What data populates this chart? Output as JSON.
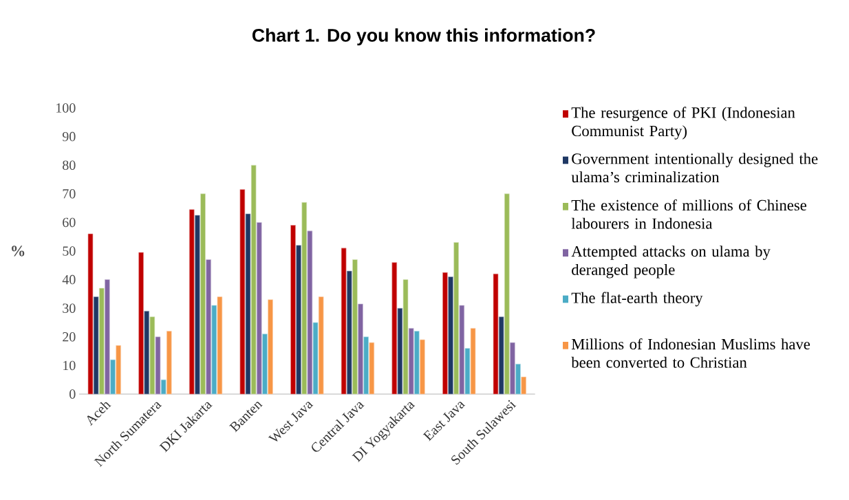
{
  "chart_data": {
    "type": "bar",
    "title": "Chart 1. Do you know this information?",
    "ylabel": "%",
    "categories": [
      "Aceh",
      "North Sumatera",
      "DKI Jakarta",
      "Banten",
      "West Java",
      "Central Java",
      "DI Yogyakarta",
      "East Java",
      "South Sulawesi"
    ],
    "ylim": [
      0,
      100
    ],
    "yticks": [
      0,
      10,
      20,
      30,
      40,
      50,
      60,
      70,
      80,
      90,
      100
    ],
    "grid": false,
    "legend": "right",
    "series": [
      {
        "name": "The resurgence of PKI (Indonesian Communist Party)",
        "color": "#c00000",
        "values": [
          56,
          49.5,
          64.5,
          71.5,
          59,
          51,
          46,
          42.5,
          42
        ]
      },
      {
        "name": "Government intentionally designed the ulama’s criminalization",
        "color": "#1f3864",
        "values": [
          34,
          29,
          62.5,
          63,
          52,
          43,
          30,
          41,
          27
        ]
      },
      {
        "name": "The existence of millions of Chinese labourers in Indonesia",
        "color": "#9bbb59",
        "values": [
          37,
          27,
          70,
          80,
          67,
          47,
          40,
          53,
          70
        ]
      },
      {
        "name": "Attempted attacks on ulama by deranged people",
        "color": "#8064a2",
        "values": [
          40,
          20,
          47,
          60,
          57,
          31.5,
          23,
          31,
          18
        ]
      },
      {
        "name": "The flat-earth theory",
        "color": "#4bacc6",
        "values": [
          12,
          5,
          31,
          21,
          25,
          20,
          22,
          16,
          10.5
        ]
      },
      {
        "name": "Millions of Indonesian Muslims have been converted to Christian",
        "color": "#f79646",
        "values": [
          17,
          22,
          34,
          33,
          34,
          18,
          19,
          23,
          6
        ]
      }
    ]
  }
}
